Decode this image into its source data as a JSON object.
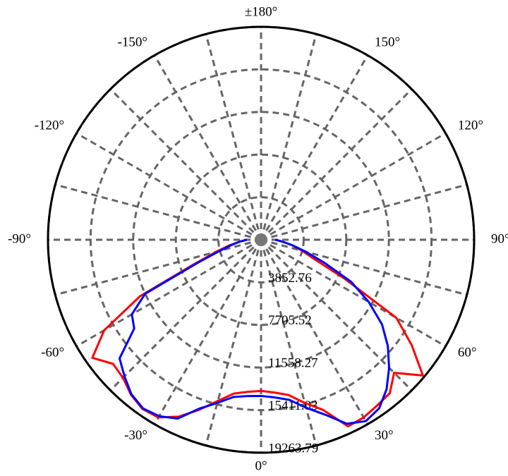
{
  "chart_data": {
    "type": "polar",
    "theta_zero": "bottom",
    "theta_direction": "clockwise-right",
    "rlim": [
      0,
      19263.79
    ],
    "rticks": [
      3852.76,
      7705.52,
      11558.27,
      15411.03,
      19263.79
    ],
    "thetaticks": [
      {
        "value": 0,
        "label": "0°"
      },
      {
        "value": 30,
        "label": "30°"
      },
      {
        "value": 60,
        "label": "60°"
      },
      {
        "value": 90,
        "label": "90°"
      },
      {
        "value": 120,
        "label": "120°"
      },
      {
        "value": 150,
        "label": "150°"
      },
      {
        "value": 180,
        "label": "±180°"
      },
      {
        "value": -150,
        "label": "-150°"
      },
      {
        "value": -120,
        "label": "-120°"
      },
      {
        "value": -90,
        "label": "-90°"
      },
      {
        "value": -60,
        "label": "-60°"
      },
      {
        "value": -30,
        "label": "-30°"
      }
    ],
    "grid": true,
    "theta": [
      -90,
      -85,
      -80,
      -75,
      -70,
      -65,
      -60,
      -55,
      -50,
      -45,
      -40,
      -35,
      -30,
      -25,
      -20,
      -15,
      -10,
      -5,
      0,
      5,
      10,
      15,
      20,
      25,
      30,
      35,
      40,
      45,
      50,
      55,
      60,
      65,
      70,
      75,
      80,
      85,
      90
    ],
    "series": [
      {
        "color": "#ff0000",
        "values": [
          1284,
          1926,
          2889,
          4174,
          6421,
          12071,
          16374,
          18621,
          17465,
          17658,
          18300,
          18685,
          18557,
          17658,
          16374,
          15089,
          14126,
          13805,
          13677,
          13869,
          14255,
          15282,
          16374,
          18621,
          18557,
          18300,
          18107,
          17016,
          19100,
          16630,
          14126,
          8347,
          5137,
          3853,
          2889,
          1926,
          1284
        ]
      },
      {
        "color": "#0000ff",
        "values": [
          1284,
          1926,
          2697,
          3853,
          6100,
          11558,
          13484,
          13998,
          16695,
          17465,
          18236,
          18621,
          18428,
          17850,
          16245,
          15282,
          14447,
          14190,
          14126,
          14319,
          14704,
          15731,
          16823,
          18364,
          18942,
          18621,
          17658,
          16374,
          14961,
          13356,
          11237,
          8989,
          6100,
          4174,
          2889,
          1926,
          1284
        ]
      }
    ]
  }
}
